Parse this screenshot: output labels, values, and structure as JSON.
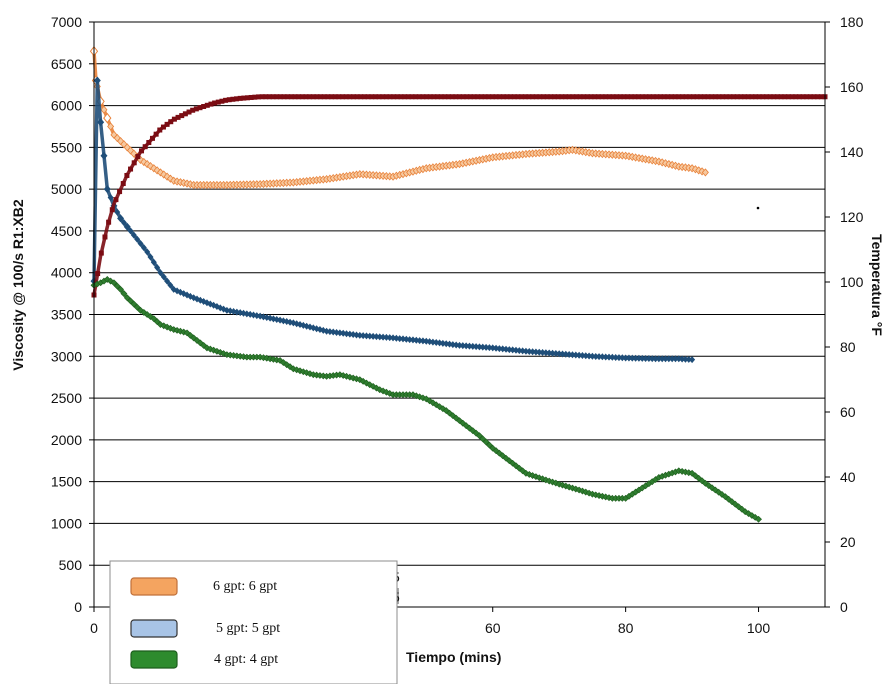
{
  "chart_data": {
    "type": "line",
    "title": "",
    "xlabel": "Tiempo (mins)",
    "ylabel": "Viscosity @ 100/s R1:XB2",
    "y2label": "Temperatura °F",
    "xlim": [
      0,
      110
    ],
    "ylim": [
      0,
      7000
    ],
    "y2lim": [
      0,
      180
    ],
    "x_ticks": [
      "0",
      "20",
      "40",
      "60",
      "80",
      "100"
    ],
    "y_ticks": [
      "0",
      "500",
      "1000",
      "1500",
      "2000",
      "2500",
      "3000",
      "3500",
      "4000",
      "4500",
      "5000",
      "5500",
      "6000",
      "6500",
      "7000"
    ],
    "y2_ticks": [
      "0",
      "20",
      "40",
      "60",
      "80",
      "100",
      "120",
      "140",
      "160",
      "180"
    ],
    "grid": true,
    "legend_position": "bottom-left",
    "legend": [
      {
        "label": "6 gpt: 6 gpt",
        "color": "#f4a460"
      },
      {
        "label": "5 gpt: 5 gpt",
        "color": "#a8c4e6"
      },
      {
        "label": "4 gpt: 4 gpt",
        "color": "#2e8b2e"
      }
    ],
    "series": [
      {
        "name": "6 gpt: 6 gpt",
        "axis": "left",
        "color": "#e8823a",
        "x": [
          0,
          0.3,
          1,
          2,
          3,
          5,
          7,
          10,
          12,
          15,
          20,
          25,
          30,
          35,
          40,
          45,
          50,
          55,
          60,
          65,
          70,
          72,
          75,
          80,
          85,
          88,
          90,
          92
        ],
        "values": [
          6650,
          6300,
          6050,
          5850,
          5650,
          5500,
          5350,
          5200,
          5100,
          5050,
          5050,
          5060,
          5080,
          5120,
          5180,
          5150,
          5250,
          5300,
          5380,
          5420,
          5450,
          5470,
          5430,
          5400,
          5330,
          5270,
          5250,
          5200
        ]
      },
      {
        "name": "",
        "axis": "left",
        "color": "#1f4e79",
        "x": [
          0,
          0.5,
          1,
          1.5,
          2,
          3,
          4,
          5,
          6,
          8,
          10,
          12,
          15,
          20,
          25,
          30,
          35,
          40,
          45,
          50,
          55,
          60,
          65,
          70,
          75,
          80,
          85,
          88,
          90
        ],
        "values": [
          3900,
          6300,
          5800,
          5400,
          5000,
          4800,
          4650,
          4550,
          4450,
          4250,
          4000,
          3800,
          3700,
          3550,
          3480,
          3400,
          3300,
          3250,
          3220,
          3180,
          3130,
          3100,
          3060,
          3030,
          3000,
          2980,
          2970,
          2970,
          2960
        ]
      },
      {
        "name": "",
        "axis": "right",
        "color": "#7b0c13",
        "x": [
          0,
          1,
          2,
          3,
          5,
          7,
          10,
          12,
          15,
          18,
          20,
          22,
          25,
          30,
          40,
          50,
          60,
          70,
          80,
          90,
          100,
          110
        ],
        "values": [
          96,
          108,
          117,
          124,
          133,
          140,
          147,
          150,
          153,
          155,
          156,
          156.5,
          157,
          157,
          157,
          157,
          157,
          157,
          157,
          157,
          157,
          157
        ]
      },
      {
        "name": "4 gpt: 4 gpt",
        "axis": "left",
        "color": "#2e8b2e",
        "x": [
          0,
          1,
          2,
          3,
          4,
          5,
          7,
          9,
          10,
          12,
          14,
          15,
          17,
          20,
          23,
          25,
          28,
          30,
          33,
          35,
          37,
          40,
          43,
          45,
          48,
          50,
          53,
          55,
          58,
          60,
          63,
          65,
          68,
          70,
          73,
          75,
          78,
          80,
          83,
          85,
          88,
          90,
          92,
          95,
          98,
          100
        ],
        "values": [
          3850,
          3880,
          3920,
          3880,
          3800,
          3700,
          3550,
          3450,
          3380,
          3320,
          3280,
          3220,
          3100,
          3020,
          2990,
          2990,
          2950,
          2850,
          2780,
          2760,
          2780,
          2720,
          2600,
          2540,
          2540,
          2490,
          2350,
          2230,
          2050,
          1900,
          1720,
          1600,
          1520,
          1470,
          1400,
          1350,
          1300,
          1300,
          1450,
          1550,
          1630,
          1600,
          1480,
          1320,
          1140,
          1050
        ]
      }
    ],
    "annotations": [
      "5",
      "5"
    ]
  }
}
